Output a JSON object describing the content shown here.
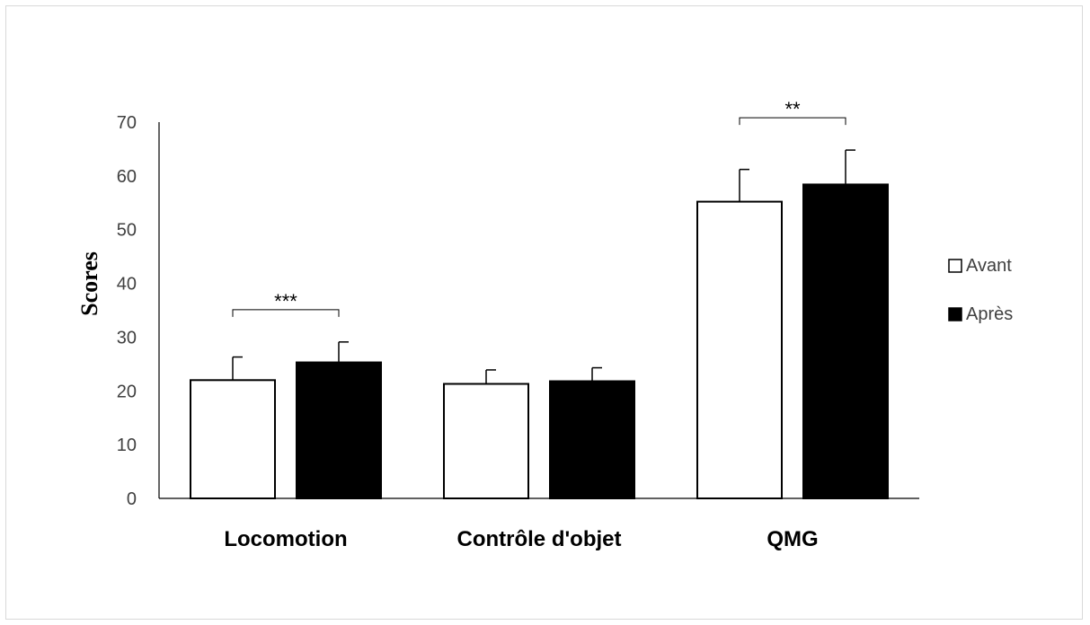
{
  "chart_data": {
    "type": "bar",
    "ylabel": "Scores",
    "ylim": [
      0,
      70
    ],
    "yticks": [
      0,
      10,
      20,
      30,
      40,
      50,
      60,
      70
    ],
    "categories": [
      "Locomotion",
      "Contrôle d'objet",
      "QMG"
    ],
    "series": [
      {
        "name": "Avant",
        "color": "#ffffff",
        "values": [
          22,
          21.3,
          55.2
        ],
        "errors": [
          4.3,
          2.6,
          6
        ]
      },
      {
        "name": "Après",
        "color": "#000000",
        "values": [
          25.3,
          21.8,
          58.4
        ],
        "errors": [
          3.8,
          2.5,
          6.4
        ]
      }
    ],
    "significance": [
      {
        "category_index": 0,
        "label": "***"
      },
      {
        "category_index": 2,
        "label": "**"
      }
    ],
    "legend_position": "right",
    "grid": false
  }
}
